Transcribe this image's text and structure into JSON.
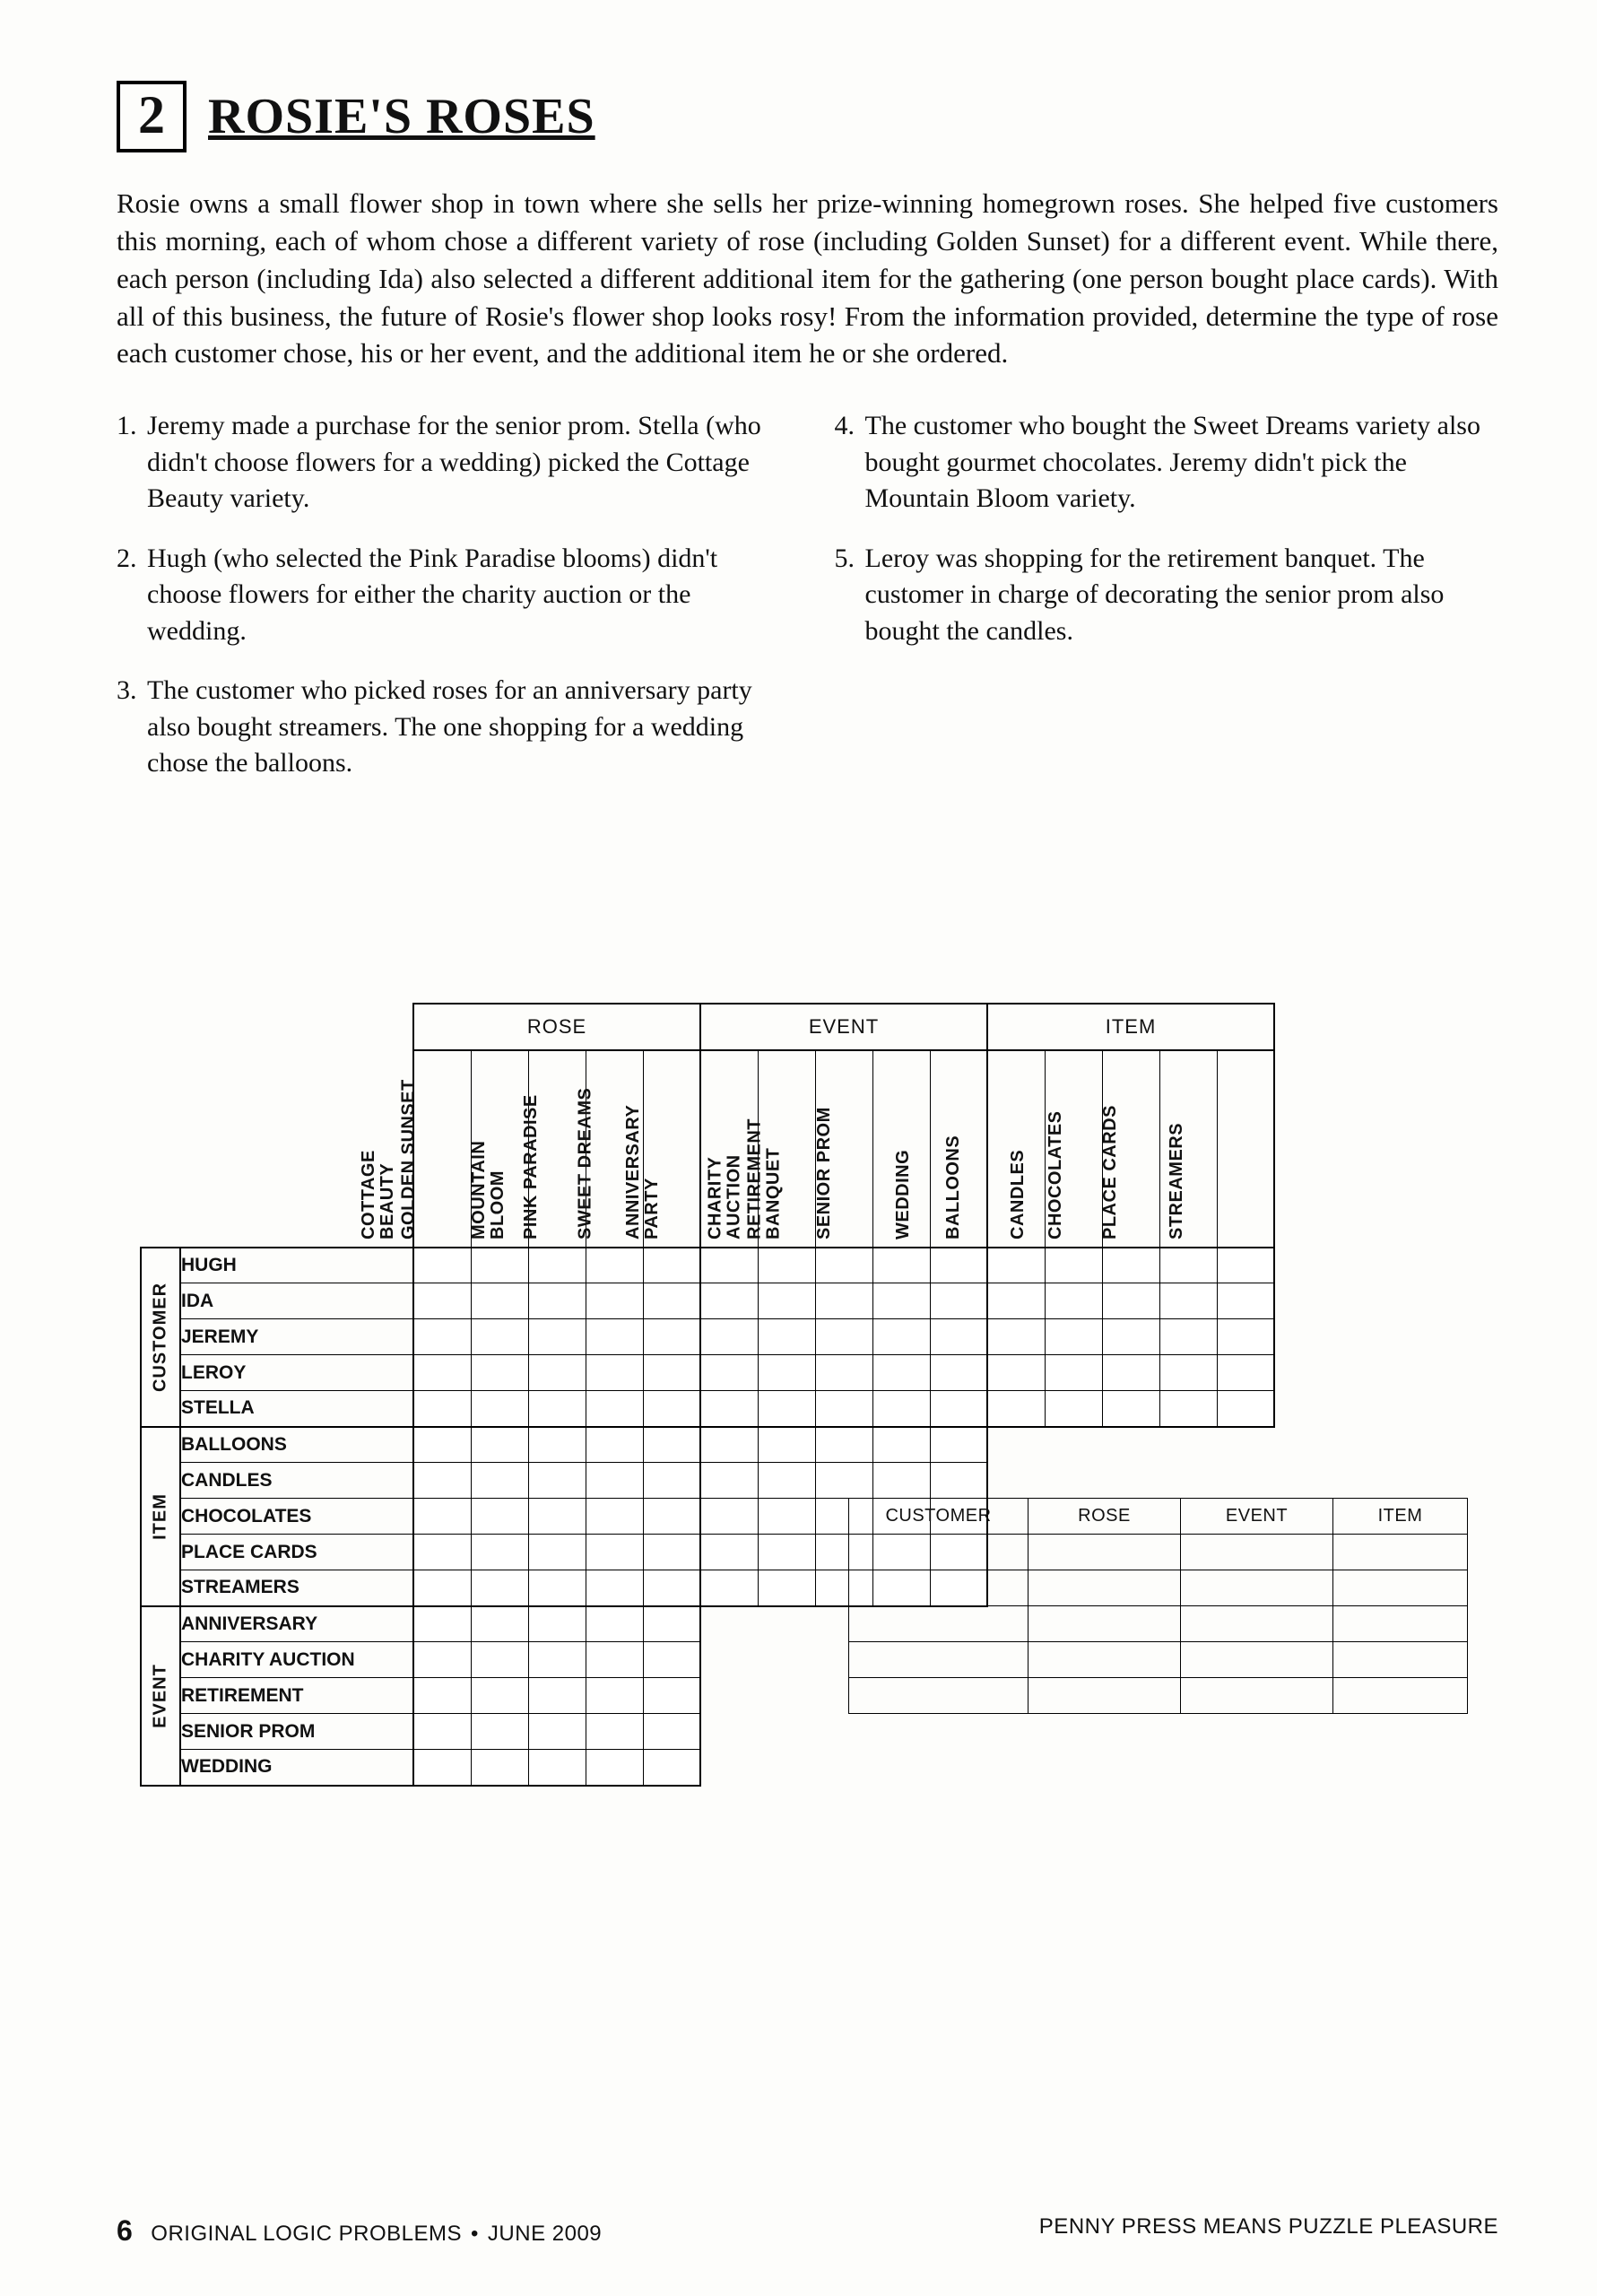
{
  "puzzle_number": "2",
  "title": "ROSIE'S ROSES",
  "intro": "Rosie owns a small flower shop in town where she sells her prize-winning homegrown roses. She helped five customers this morning, each of whom chose a different variety of rose (including Golden Sunset) for a different event. While there, each person (including Ida) also selected a different additional item for the gathering (one person bought place cards). With all of this business, the future of Rosie's flower shop looks rosy! From the information provided, determine the type of rose each customer chose, his or her event, and the additional item he or she ordered.",
  "clues_left": [
    {
      "n": "1.",
      "t": "Jeremy made a purchase for the senior prom. Stella (who didn't choose flowers for a wedding) picked the Cottage Beauty variety."
    },
    {
      "n": "2.",
      "t": "Hugh (who selected the Pink Paradise blooms) didn't choose flowers for either the charity auction or the wedding."
    },
    {
      "n": "3.",
      "t": "The customer who picked roses for an anniversary party also bought streamers. The one shopping for a wedding chose the balloons."
    }
  ],
  "clues_right": [
    {
      "n": "4.",
      "t": "The customer who bought the Sweet Dreams variety also bought gourmet chocolates. Jeremy didn't pick the Mountain Bloom variety."
    },
    {
      "n": "5.",
      "t": "Leroy was shopping for the retirement banquet. The customer in charge of decorating the senior prom also bought the candles."
    }
  ],
  "grid": {
    "col_groups": [
      {
        "name": "ROSE",
        "cols": [
          "COTTAGE\nBEAUTY",
          "GOLDEN SUNSET",
          "MOUNTAIN\nBLOOM",
          "PINK PARADISE",
          "SWEET DREAMS"
        ]
      },
      {
        "name": "EVENT",
        "cols": [
          "ANNIVERSARY\nPARTY",
          "CHARITY\nAUCTION",
          "RETIREMENT\nBANQUET",
          "SENIOR PROM",
          "WEDDING"
        ]
      },
      {
        "name": "ITEM",
        "cols": [
          "BALLOONS",
          "CANDLES",
          "CHOCOLATES",
          "PLACE CARDS",
          "STREAMERS"
        ]
      }
    ],
    "row_groups": [
      {
        "name": "CUSTOMER",
        "rows": [
          "HUGH",
          "IDA",
          "JEREMY",
          "LEROY",
          "STELLA"
        ],
        "col_span": 3
      },
      {
        "name": "ITEM",
        "rows": [
          "BALLOONS",
          "CANDLES",
          "CHOCOLATES",
          "PLACE CARDS",
          "STREAMERS"
        ],
        "col_span": 2
      },
      {
        "name": "EVENT",
        "rows": [
          "ANNIVERSARY",
          "CHARITY AUCTION",
          "RETIREMENT",
          "SENIOR PROM",
          "WEDDING"
        ],
        "col_span": 1
      }
    ]
  },
  "answer_headers": [
    "CUSTOMER",
    "ROSE",
    "EVENT",
    "ITEM"
  ],
  "answer_rows": 5,
  "footer": {
    "page": "6",
    "mag": "ORIGINAL LOGIC PROBLEMS",
    "issue": "JUNE 2009",
    "tagline": "PENNY PRESS MEANS PUZZLE PLEASURE"
  }
}
